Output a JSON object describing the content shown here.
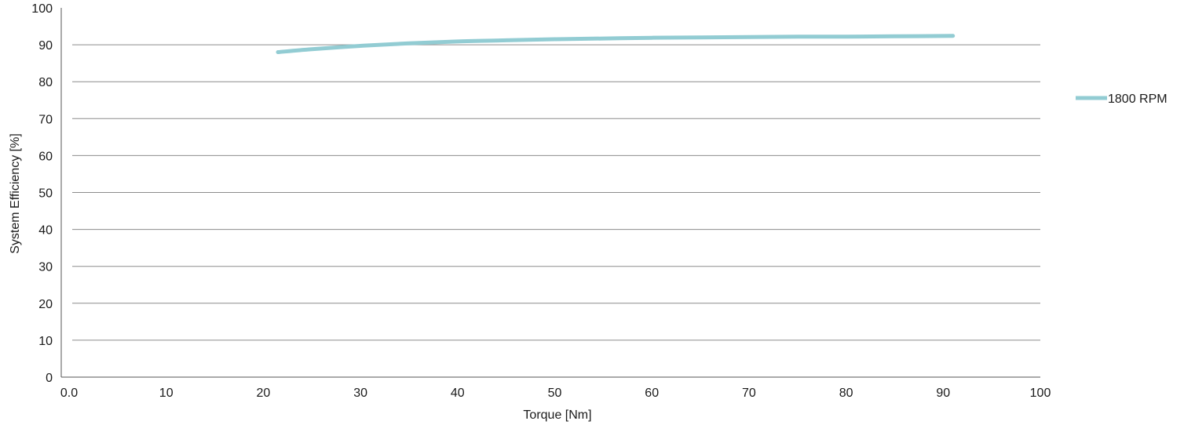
{
  "chart_data": {
    "type": "line",
    "title": "",
    "xlabel": "Torque [Nm]",
    "ylabel": "System Efficiency [%]",
    "xlim": [
      0,
      100
    ],
    "ylim": [
      0,
      100
    ],
    "x_ticks": [
      0,
      10,
      20,
      30,
      40,
      50,
      60,
      70,
      80,
      90,
      100
    ],
    "x_tick_labels": [
      "0.0",
      "10",
      "20",
      "30",
      "40",
      "50",
      "60",
      "70",
      "80",
      "90",
      "100"
    ],
    "y_ticks": [
      0,
      10,
      20,
      30,
      40,
      50,
      60,
      70,
      80,
      90,
      100
    ],
    "y_tick_labels": [
      "0",
      "10",
      "20",
      "30",
      "40",
      "50",
      "60",
      "70",
      "80",
      "90",
      "100"
    ],
    "grid": "horizontal",
    "legend_position": "right",
    "series": [
      {
        "name": "1800 RPM",
        "color": "#92ccd3",
        "x": [
          21.5,
          25,
          30,
          35,
          40,
          45,
          50,
          55,
          60,
          65,
          70,
          75,
          80,
          85,
          91
        ],
        "y": [
          88.0,
          88.8,
          89.7,
          90.4,
          90.9,
          91.2,
          91.5,
          91.7,
          91.9,
          92.0,
          92.1,
          92.2,
          92.2,
          92.3,
          92.4
        ]
      }
    ]
  }
}
